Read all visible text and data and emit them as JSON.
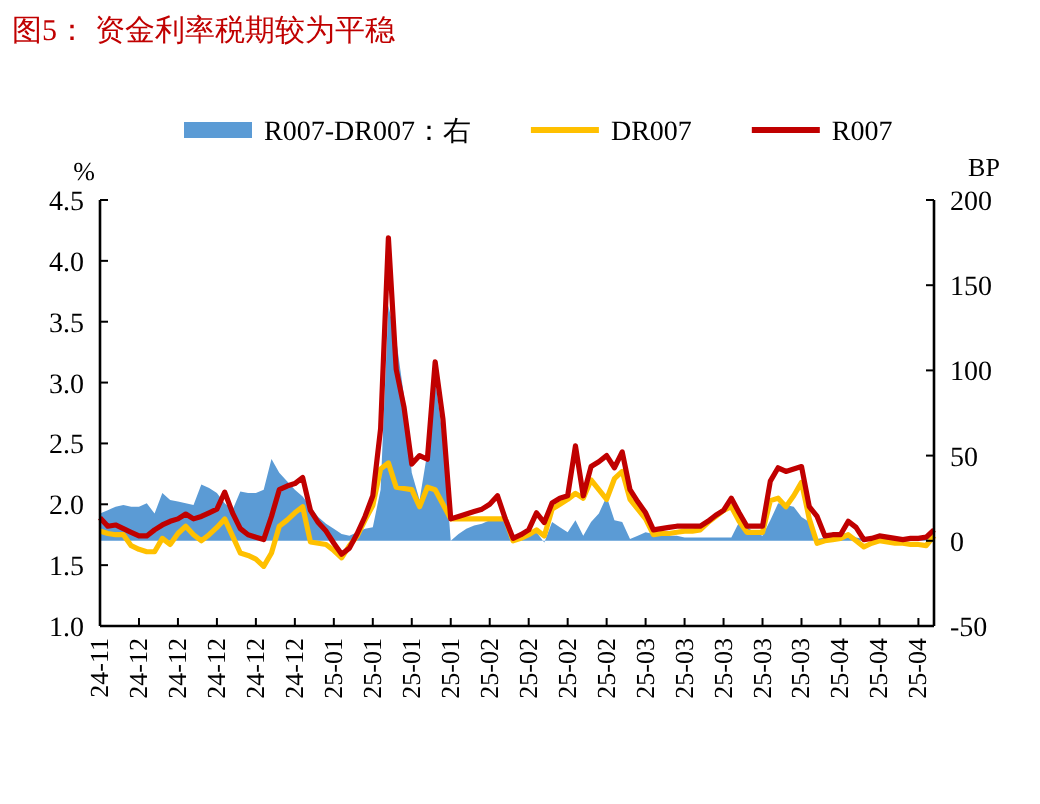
{
  "chart_data": {
    "type": "line",
    "title": "图5：  资金利率税期较为平稳",
    "ylabel": "%",
    "y2label": "BP",
    "categories": [
      "24-11",
      null,
      null,
      null,
      null,
      "24-12",
      null,
      null,
      null,
      null,
      "24-12",
      null,
      null,
      null,
      null,
      "24-12",
      null,
      null,
      null,
      null,
      "24-12",
      null,
      null,
      null,
      null,
      "24-12",
      null,
      null,
      null,
      null,
      "25-01",
      null,
      null,
      null,
      null,
      "25-01",
      null,
      null,
      null,
      null,
      "25-01",
      null,
      null,
      null,
      null,
      "25-01",
      null,
      null,
      null,
      null,
      "25-02",
      null,
      null,
      null,
      null,
      "25-02",
      null,
      null,
      null,
      null,
      "25-02",
      null,
      null,
      null,
      null,
      "25-02",
      null,
      null,
      null,
      null,
      "25-03",
      null,
      null,
      null,
      null,
      "25-03",
      null,
      null,
      null,
      null,
      "25-03",
      null,
      null,
      null,
      null,
      "25-03",
      null,
      null,
      null,
      null,
      "25-03",
      null,
      null,
      null,
      null,
      "25-04",
      null,
      null,
      null,
      null,
      "25-04",
      null,
      null,
      null,
      null,
      "25-04",
      null,
      null
    ],
    "ylim": [
      1,
      4.5
    ],
    "yticks": [
      {
        "value": 1,
        "label": "1.0"
      },
      {
        "value": 1.5,
        "label": "1.5"
      },
      {
        "value": 2,
        "label": "2.0"
      },
      {
        "value": 2.5,
        "label": "2.5"
      },
      {
        "value": 3,
        "label": "3.0"
      },
      {
        "value": 3.5,
        "label": "3.5"
      },
      {
        "value": 4,
        "label": "4.0"
      },
      {
        "value": 4.5,
        "label": "4.5"
      }
    ],
    "y2lim": [
      -50,
      200
    ],
    "y2ticks": [
      -50,
      0,
      50,
      100,
      150,
      200
    ],
    "grid": false,
    "legend": "top",
    "marker": "none",
    "line_style": "solid",
    "series": [
      {
        "name": "R007-DR007：右",
        "type": "area",
        "axis": "y2",
        "color": "#5b9bd5",
        "values": [
          16,
          18,
          20,
          21,
          20,
          20,
          22,
          16,
          28,
          24,
          23,
          22,
          21,
          33,
          31,
          28,
          22,
          18,
          29,
          28,
          28,
          30,
          48,
          40,
          35,
          30,
          26,
          20,
          14,
          10,
          7,
          4,
          3,
          5,
          7,
          8,
          30,
          138,
          118,
          85,
          40,
          24,
          52,
          95,
          60,
          0,
          4,
          7,
          9,
          10,
          12,
          14,
          12,
          3,
          0,
          3,
          5,
          -1,
          11,
          8,
          5,
          12,
          3,
          11,
          16,
          26,
          12,
          11,
          1,
          3,
          5,
          4,
          4,
          3,
          3,
          2,
          2,
          2,
          2,
          2,
          2,
          2,
          11,
          8,
          5,
          3,
          12,
          22,
          21,
          20,
          14,
          11,
          1,
          2,
          4,
          5,
          4,
          2,
          1,
          1,
          1,
          2,
          2,
          2,
          2,
          2,
          3,
          3
        ]
      },
      {
        "name": "DR007",
        "color": "#ffc000",
        "values": [
          1.78,
          1.76,
          1.75,
          1.75,
          1.66,
          1.63,
          1.61,
          1.61,
          1.72,
          1.67,
          1.76,
          1.82,
          1.75,
          1.7,
          1.75,
          1.81,
          1.88,
          1.74,
          1.6,
          1.58,
          1.55,
          1.49,
          1.6,
          1.82,
          1.87,
          1.93,
          1.98,
          1.69,
          1.68,
          1.67,
          1.62,
          1.56,
          1.66,
          1.74,
          1.87,
          1.99,
          2.29,
          2.34,
          2.14,
          2.13,
          2.12,
          1.98,
          2.14,
          2.12,
          2.0,
          1.88,
          1.88,
          1.88,
          1.88,
          1.88,
          1.88,
          1.88,
          1.88,
          1.7,
          1.72,
          1.75,
          1.79,
          1.74,
          1.96,
          2.0,
          2.04,
          2.09,
          2.05,
          2.2,
          2.12,
          2.04,
          2.21,
          2.27,
          2.04,
          1.96,
          1.88,
          1.75,
          1.76,
          1.76,
          1.77,
          1.78,
          1.78,
          1.79,
          1.85,
          1.9,
          1.95,
          1.98,
          1.86,
          1.77,
          1.77,
          1.77,
          2.03,
          2.05,
          1.98,
          2.07,
          2.18,
          1.88,
          1.68,
          1.7,
          1.71,
          1.72,
          1.75,
          1.7,
          1.65,
          1.68,
          1.7,
          1.69,
          1.68,
          1.68,
          1.67,
          1.67,
          1.66,
          1.74
        ]
      },
      {
        "name": "R007",
        "color": "#c00000",
        "values": [
          1.89,
          1.82,
          1.83,
          1.8,
          1.77,
          1.74,
          1.74,
          1.79,
          1.83,
          1.86,
          1.88,
          1.92,
          1.88,
          1.9,
          1.93,
          1.96,
          2.1,
          1.93,
          1.8,
          1.75,
          1.73,
          1.71,
          1.9,
          2.12,
          2.15,
          2.17,
          2.22,
          1.95,
          1.85,
          1.78,
          1.68,
          1.59,
          1.64,
          1.76,
          1.9,
          2.07,
          2.62,
          4.19,
          3.11,
          2.8,
          2.33,
          2.4,
          2.37,
          3.17,
          2.7,
          1.88,
          1.9,
          1.92,
          1.94,
          1.96,
          2.0,
          2.07,
          1.88,
          1.72,
          1.75,
          1.79,
          1.93,
          1.85,
          2.01,
          2.05,
          2.07,
          2.48,
          2.07,
          2.31,
          2.35,
          2.4,
          2.3,
          2.43,
          2.12,
          2.02,
          1.93,
          1.79,
          1.8,
          1.81,
          1.82,
          1.82,
          1.82,
          1.82,
          1.86,
          1.91,
          1.95,
          2.05,
          1.93,
          1.82,
          1.82,
          1.82,
          2.19,
          2.3,
          2.27,
          2.29,
          2.31,
          1.98,
          1.9,
          1.74,
          1.75,
          1.75,
          1.86,
          1.81,
          1.71,
          1.72,
          1.74,
          1.73,
          1.72,
          1.71,
          1.72,
          1.72,
          1.73,
          1.79
        ]
      }
    ]
  }
}
